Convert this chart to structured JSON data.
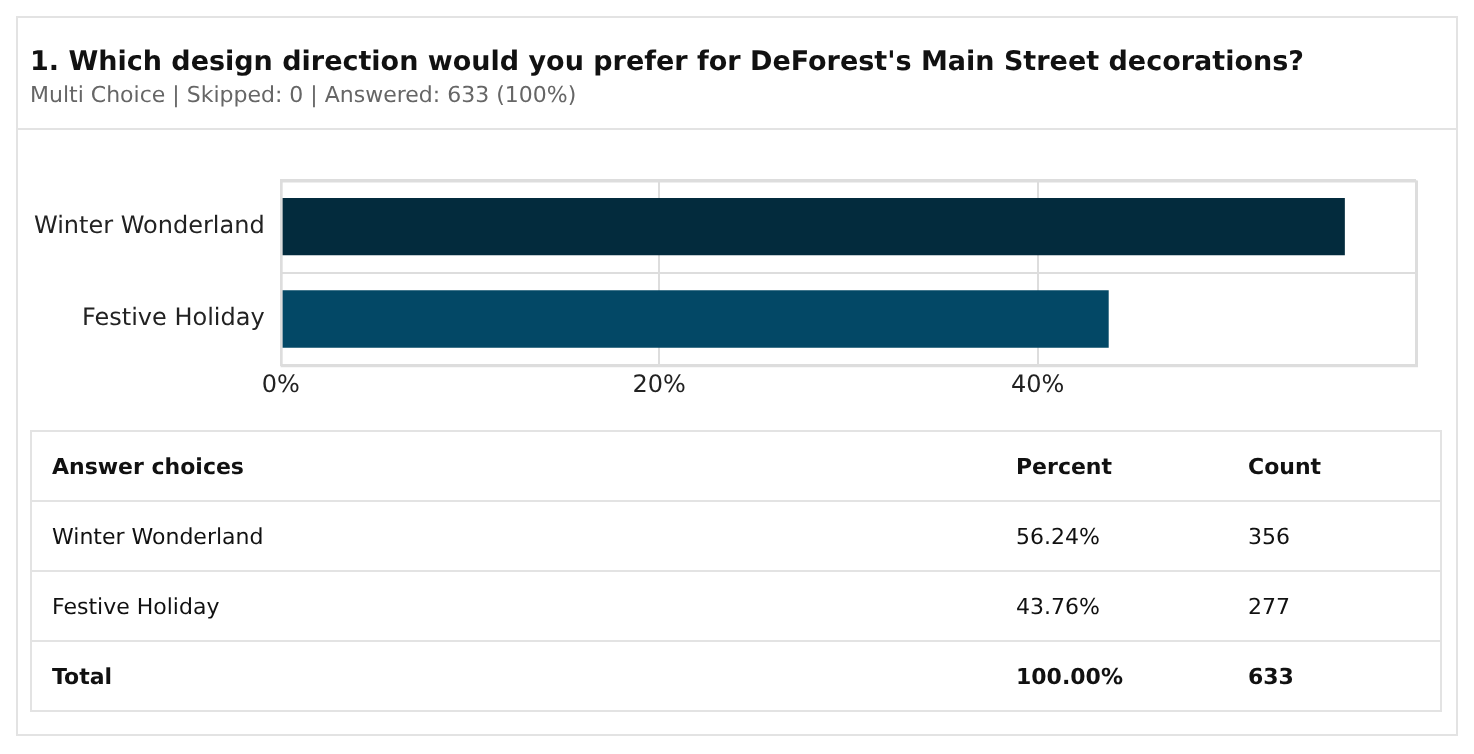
{
  "chart_data": {
    "type": "bar",
    "orientation": "horizontal",
    "title": "1. Which design direction would you prefer for DeForest's Main Street decorations?",
    "subtitle": "Multi Choice | Skipped: 0 | Answered: 633 (100%)",
    "categories": [
      "Winter Wonderland",
      "Festive Holiday"
    ],
    "values": [
      56.24,
      43.76
    ],
    "colors": [
      "#032b3d",
      "#034866"
    ],
    "xlim": [
      0,
      60
    ],
    "xticks": [
      {
        "value": 0,
        "label": "0%"
      },
      {
        "value": 20,
        "label": "20%"
      },
      {
        "value": 40,
        "label": "40%"
      },
      {
        "value": 60,
        "label": null
      }
    ],
    "grid": true,
    "annotations": [
      "Answer choices",
      "Percent",
      "Count",
      "56.24%",
      "356",
      "43.76%",
      "277",
      "Total",
      "100.00%",
      "633"
    ]
  }
}
